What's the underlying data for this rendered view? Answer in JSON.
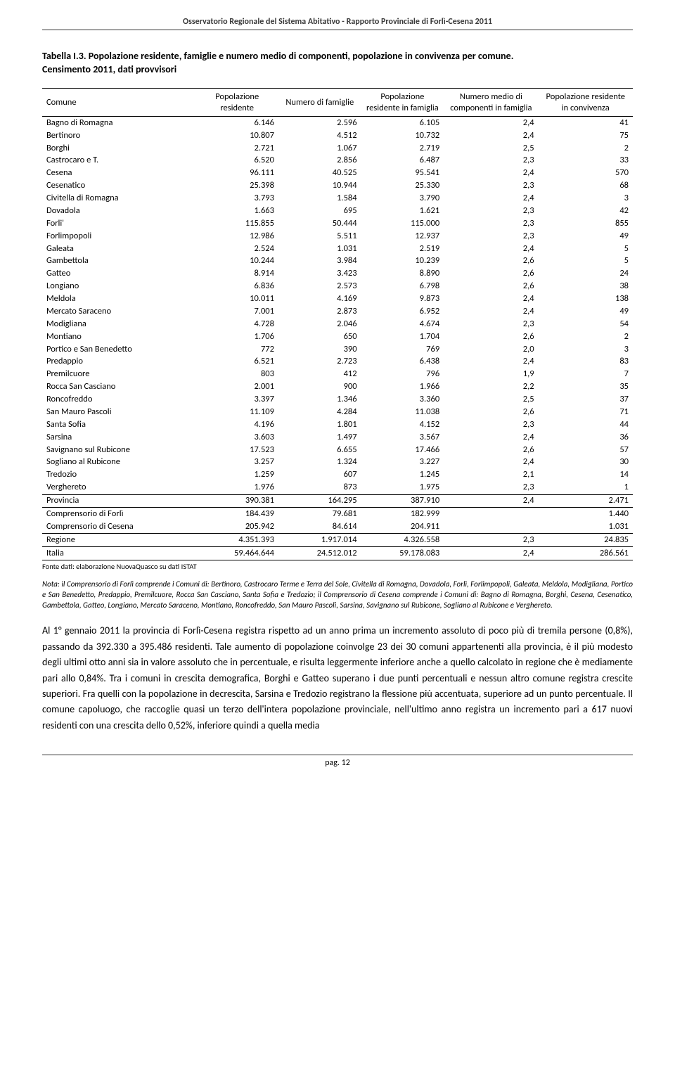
{
  "header": "Osservatorio Regionale del Sistema Abitativo - Rapporto Provinciale di Forlì-Cesena 2011",
  "title": "Tabella I.3. Popolazione residente, famiglie e numero medio di componenti, popolazione in convivenza per comune.",
  "subtitle": "Censimento 2011, dati provvisori",
  "columns": [
    "Comune",
    "Popolazione residente",
    "Numero di famiglie",
    "Popolazione residente in famiglia",
    "Numero medio di componenti in famiglia",
    "Popolazione residente in convivenza"
  ],
  "rows": [
    [
      "Bagno di Romagna",
      "6.146",
      "2.596",
      "6.105",
      "2,4",
      "41"
    ],
    [
      "Bertinoro",
      "10.807",
      "4.512",
      "10.732",
      "2,4",
      "75"
    ],
    [
      "Borghi",
      "2.721",
      "1.067",
      "2.719",
      "2,5",
      "2"
    ],
    [
      "Castrocaro e T.",
      "6.520",
      "2.856",
      "6.487",
      "2,3",
      "33"
    ],
    [
      "Cesena",
      "96.111",
      "40.525",
      "95.541",
      "2,4",
      "570"
    ],
    [
      "Cesenatico",
      "25.398",
      "10.944",
      "25.330",
      "2,3",
      "68"
    ],
    [
      "Civitella di Romagna",
      "3.793",
      "1.584",
      "3.790",
      "2,4",
      "3"
    ],
    [
      "Dovadola",
      "1.663",
      "695",
      "1.621",
      "2,3",
      "42"
    ],
    [
      "Forli'",
      "115.855",
      "50.444",
      "115.000",
      "2,3",
      "855"
    ],
    [
      "Forlimpopoli",
      "12.986",
      "5.511",
      "12.937",
      "2,3",
      "49"
    ],
    [
      "Galeata",
      "2.524",
      "1.031",
      "2.519",
      "2,4",
      "5"
    ],
    [
      "Gambettola",
      "10.244",
      "3.984",
      "10.239",
      "2,6",
      "5"
    ],
    [
      "Gatteo",
      "8.914",
      "3.423",
      "8.890",
      "2,6",
      "24"
    ],
    [
      "Longiano",
      "6.836",
      "2.573",
      "6.798",
      "2,6",
      "38"
    ],
    [
      "Meldola",
      "10.011",
      "4.169",
      "9.873",
      "2,4",
      "138"
    ],
    [
      "Mercato Saraceno",
      "7.001",
      "2.873",
      "6.952",
      "2,4",
      "49"
    ],
    [
      "Modigliana",
      "4.728",
      "2.046",
      "4.674",
      "2,3",
      "54"
    ],
    [
      "Montiano",
      "1.706",
      "650",
      "1.704",
      "2,6",
      "2"
    ],
    [
      "Portico e San Benedetto",
      "772",
      "390",
      "769",
      "2,0",
      "3"
    ],
    [
      "Predappio",
      "6.521",
      "2.723",
      "6.438",
      "2,4",
      "83"
    ],
    [
      "Premilcuore",
      "803",
      "412",
      "796",
      "1,9",
      "7"
    ],
    [
      "Rocca San Casciano",
      "2.001",
      "900",
      "1.966",
      "2,2",
      "35"
    ],
    [
      "Roncofreddo",
      "3.397",
      "1.346",
      "3.360",
      "2,5",
      "37"
    ],
    [
      "San Mauro Pascoli",
      "11.109",
      "4.284",
      "11.038",
      "2,6",
      "71"
    ],
    [
      "Santa Sofia",
      "4.196",
      "1.801",
      "4.152",
      "2,3",
      "44"
    ],
    [
      "Sarsina",
      "3.603",
      "1.497",
      "3.567",
      "2,4",
      "36"
    ],
    [
      "Savignano sul Rubicone",
      "17.523",
      "6.655",
      "17.466",
      "2,6",
      "57"
    ],
    [
      "Sogliano al Rubicone",
      "3.257",
      "1.324",
      "3.227",
      "2,4",
      "30"
    ],
    [
      "Tredozio",
      "1.259",
      "607",
      "1.245",
      "2,1",
      "14"
    ],
    [
      "Verghereto",
      "1.976",
      "873",
      "1.975",
      "2,3",
      "1"
    ]
  ],
  "summary": [
    [
      "Provincia",
      "390.381",
      "164.295",
      "387.910",
      "2,4",
      "2.471"
    ],
    [
      "Comprensorio di Forlì",
      "184.439",
      "79.681",
      "182.999",
      "",
      "1.440"
    ],
    [
      "Comprensorio di Cesena",
      "205.942",
      "84.614",
      "204.911",
      "",
      "1.031"
    ],
    [
      "Regione",
      "4.351.393",
      "1.917.014",
      "4.326.558",
      "2,3",
      "24.835"
    ],
    [
      "Italia",
      "59.464.644",
      "24.512.012",
      "59.178.083",
      "2,4",
      "286.561"
    ]
  ],
  "source": "Fonte dati: elaborazione NuovaQuasco su dati ISTAT",
  "note": "Nota: il Comprensorio di Forlì comprende i Comuni di: Bertinoro, Castrocaro Terme e Terra del Sole, Civitella di Romagna, Dovadola, Forlì, Forlimpopoli, Galeata, Meldola, Modigliana, Portico e San Benedetto, Predappio, Premilcuore, Rocca San Casciano, Santa Sofia e Tredozio; il Comprensorio di Cesena comprende i Comuni di: Bagno di Romagna, Borghi, Cesena, Cesenatico, Gambettola, Gatteo, Longiano, Mercato Saraceno, Montiano, Roncofreddo, San Mauro Pascoli, Sarsina, Savignano sul Rubicone, Sogliano al Rubicone e Verghereto.",
  "body": "Al 1° gennaio 2011 la provincia di Forlì-Cesena registra rispetto ad un anno prima un incremento assoluto di poco più di tremila persone (0,8%), passando da 392.330 a 395.486 residenti. Tale aumento di popolazione coinvolge 23 dei 30 comuni appartenenti alla provincia, è il più modesto degli ultimi otto anni sia in valore assoluto che in percentuale, e risulta leggermente inferiore anche a quello calcolato in regione che è mediamente pari allo 0,84%. Tra i comuni in crescita demografica, Borghi e Gatteo superano i due punti percentuali e nessun altro comune registra crescite superiori. Fra quelli con la popolazione in decrescita, Sarsina e Tredozio registrano la flessione più accentuata, superiore ad un punto percentuale. Il comune capoluogo, che raccoglie quasi un terzo dell'intera popolazione provinciale, nell'ultimo anno registra un incremento pari a 617 nuovi residenti con una crescita dello 0,52%, inferiore quindi a quella media",
  "footer": "pag. 12"
}
